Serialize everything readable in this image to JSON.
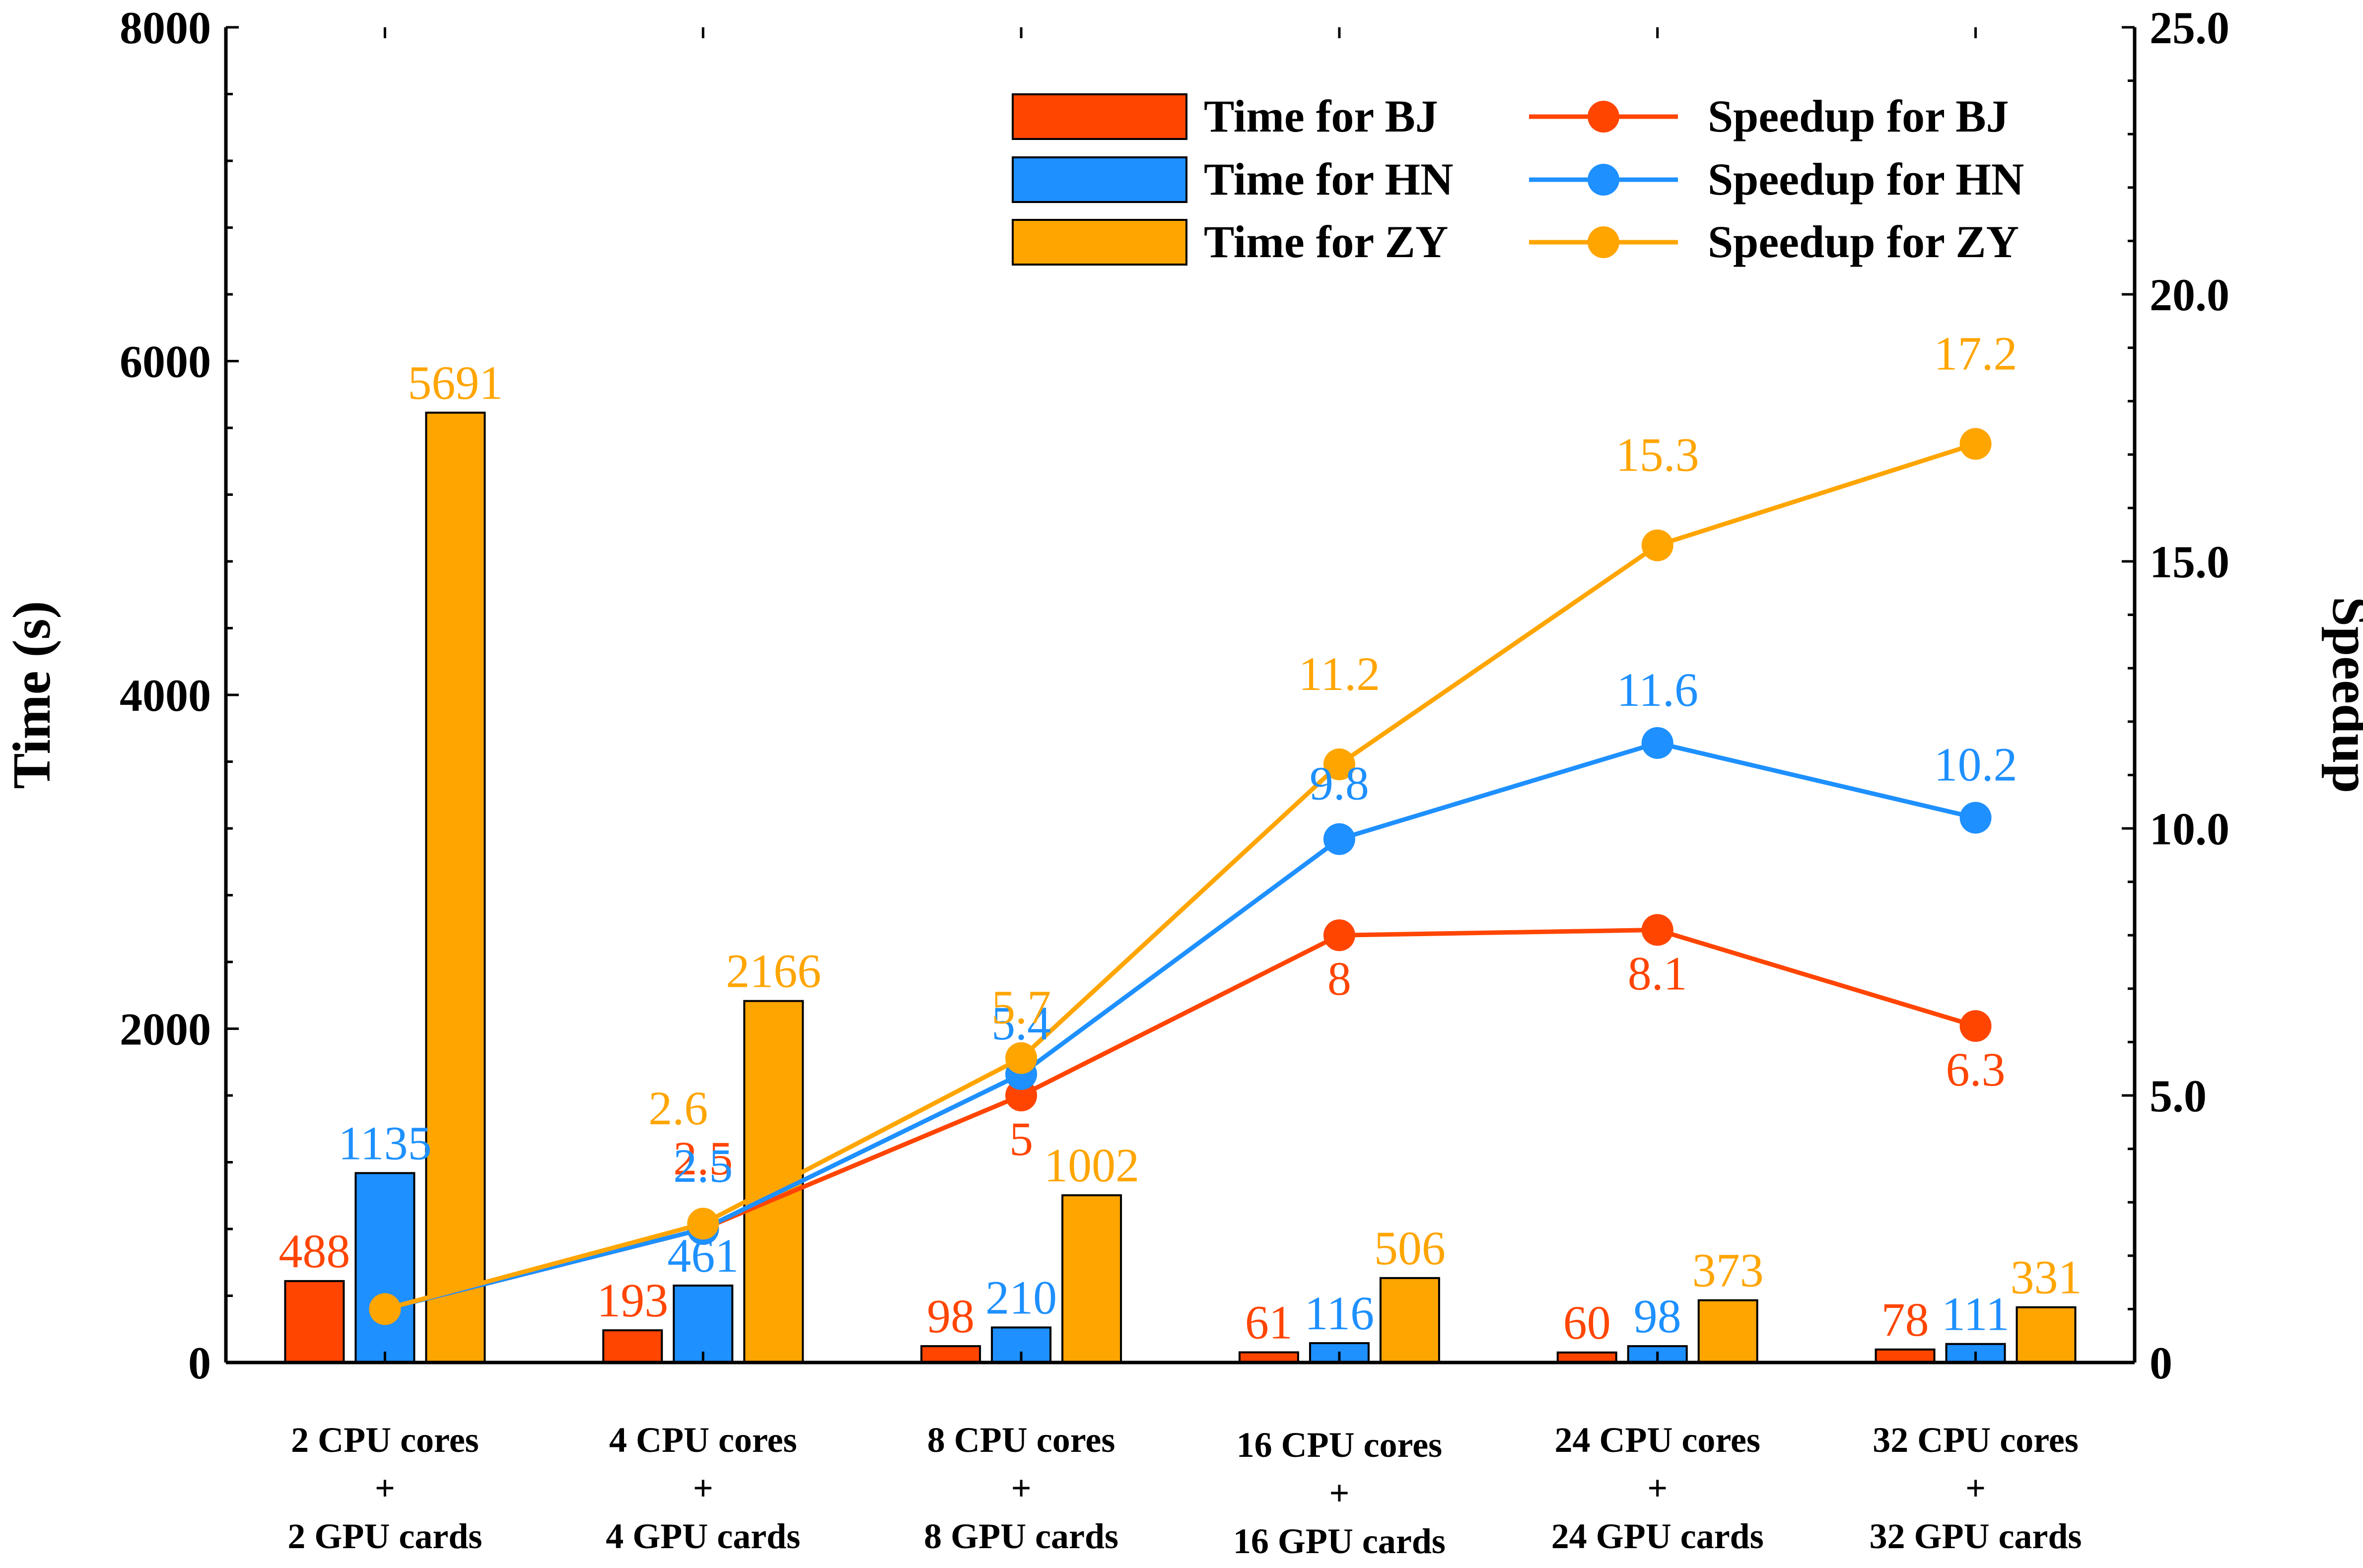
{
  "chart_data": {
    "type": "bar",
    "categories": [
      [
        "2 CPU cores",
        "+",
        "2 GPU cards"
      ],
      [
        "4 CPU cores",
        "+",
        "4 GPU cards"
      ],
      [
        "8 CPU cores",
        "+",
        "8 GPU cards"
      ],
      [
        "16 CPU cores",
        "+",
        "16 GPU cards"
      ],
      [
        "24 CPU cores",
        "+",
        "24 GPU cards"
      ],
      [
        "32 CPU cores",
        "+",
        "32 GPU cards"
      ]
    ],
    "ylabel": "Time (s)",
    "y2label": "Speedup",
    "ylim": [
      0,
      8000
    ],
    "y2lim": [
      0,
      25
    ],
    "yticks": [
      "0",
      "2000",
      "4000",
      "6000",
      "8000"
    ],
    "y2ticks": [
      "0",
      "5.0",
      "10.0",
      "15.0",
      "20.0",
      "25.0"
    ],
    "legend_position": "top-right",
    "bar_series": [
      {
        "name": "Time for BJ",
        "color": "#FF4500",
        "values": [
          488,
          193,
          98,
          61,
          60,
          78
        ],
        "labels": [
          "488",
          "193",
          "98",
          "61",
          "60",
          "78"
        ]
      },
      {
        "name": "Time for HN",
        "color": "#1E90FF",
        "values": [
          1135,
          461,
          210,
          116,
          98,
          111
        ],
        "labels": [
          "1135",
          "461",
          "210",
          "116",
          "98",
          "111"
        ]
      },
      {
        "name": "Time for ZY",
        "color": "#FFA500",
        "values": [
          5691,
          2166,
          1002,
          506,
          373,
          331
        ],
        "labels": [
          "5691",
          "2166",
          "1002",
          "506",
          "373",
          "331"
        ]
      }
    ],
    "line_series": [
      {
        "name": "Speedup for BJ",
        "color": "#FF4500",
        "values": [
          1,
          2.5,
          5,
          8,
          8.1,
          6.3
        ],
        "labels": [
          "",
          "2.5",
          "5",
          "8",
          "8.1",
          "6.3"
        ]
      },
      {
        "name": "Speedup for HN",
        "color": "#1E90FF",
        "values": [
          1,
          2.5,
          5.4,
          9.8,
          11.6,
          10.2
        ],
        "labels": [
          "",
          "2.5",
          "5.4",
          "9.8",
          "11.6",
          "10.2"
        ]
      },
      {
        "name": "Speedup for ZY",
        "color": "#FFA500",
        "values": [
          1,
          2.6,
          5.7,
          11.2,
          15.3,
          17.2
        ],
        "labels": [
          "",
          "2.6",
          "5.7",
          "11.2",
          "15.3",
          "17.2"
        ]
      }
    ]
  }
}
